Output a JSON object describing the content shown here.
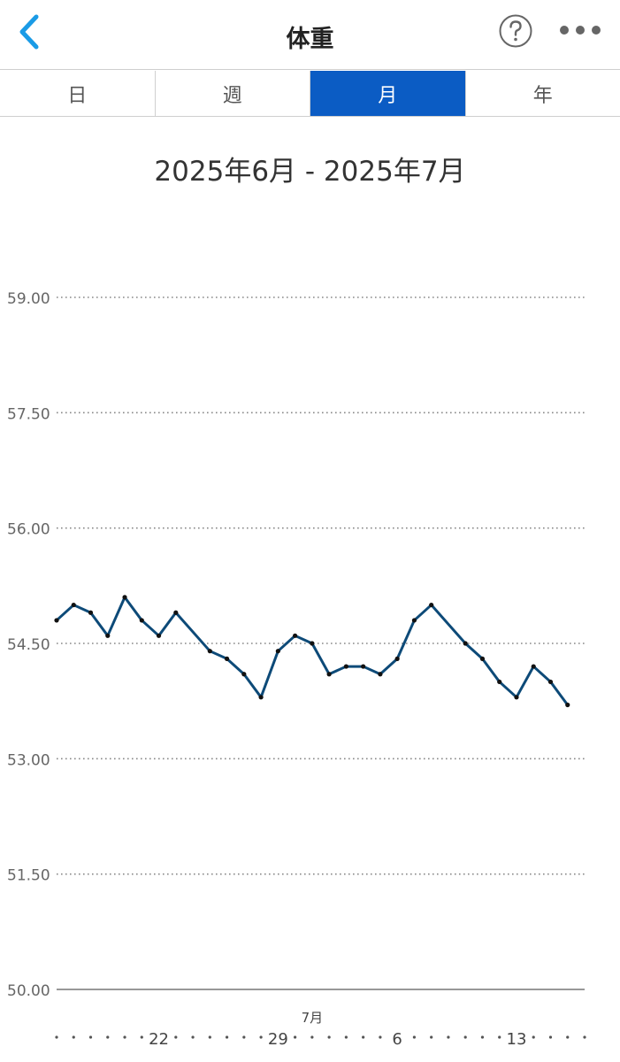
{
  "header": {
    "title": "体重",
    "back_icon": "chevron-left-icon",
    "help_icon": "help-circle-icon",
    "more_icon": "more-horizontal-icon",
    "accent": "#1a9be6"
  },
  "tabs": [
    {
      "label": "日",
      "active": false
    },
    {
      "label": "週",
      "active": false
    },
    {
      "label": "月",
      "active": true
    },
    {
      "label": "年",
      "active": false
    }
  ],
  "date_range": "2025年6月 - 2025年7月",
  "chart_data": {
    "type": "line",
    "y_ticks": [
      "59.00",
      "57.50",
      "56.00",
      "54.50",
      "53.00",
      "51.50",
      "50.00"
    ],
    "ylim": [
      50,
      59
    ],
    "x_labels": [
      {
        "day": 22,
        "label": "22"
      },
      {
        "day": 29,
        "label": "29"
      },
      {
        "day": 36,
        "label": "6"
      },
      {
        "day": 43,
        "label": "13"
      }
    ],
    "month_label": {
      "day": 31,
      "label": "7月"
    },
    "xlim": [
      16,
      47
    ],
    "grid": true,
    "line_color": "#0d4a78",
    "series": [
      {
        "values": [
          {
            "x": 16,
            "y": 54.8
          },
          {
            "x": 17,
            "y": 55.0
          },
          {
            "x": 18,
            "y": 54.9
          },
          {
            "x": 19,
            "y": 54.6
          },
          {
            "x": 20,
            "y": 55.1
          },
          {
            "x": 21,
            "y": 54.8
          },
          {
            "x": 22,
            "y": 54.6
          },
          {
            "x": 23,
            "y": 54.9
          },
          {
            "x": 25,
            "y": 54.4
          },
          {
            "x": 26,
            "y": 54.3
          },
          {
            "x": 27,
            "y": 54.1
          },
          {
            "x": 28,
            "y": 53.8
          },
          {
            "x": 29,
            "y": 54.4
          },
          {
            "x": 30,
            "y": 54.6
          },
          {
            "x": 31,
            "y": 54.5
          },
          {
            "x": 32,
            "y": 54.1
          },
          {
            "x": 33,
            "y": 54.2
          },
          {
            "x": 34,
            "y": 54.2
          },
          {
            "x": 35,
            "y": 54.1
          },
          {
            "x": 36,
            "y": 54.3
          },
          {
            "x": 37,
            "y": 54.8
          },
          {
            "x": 38,
            "y": 55.0
          },
          {
            "x": 40,
            "y": 54.5
          },
          {
            "x": 41,
            "y": 54.3
          },
          {
            "x": 42,
            "y": 54.0
          },
          {
            "x": 43,
            "y": 53.8
          },
          {
            "x": 44,
            "y": 54.2
          },
          {
            "x": 45,
            "y": 54.0
          },
          {
            "x": 46,
            "y": 53.7
          }
        ]
      }
    ]
  }
}
